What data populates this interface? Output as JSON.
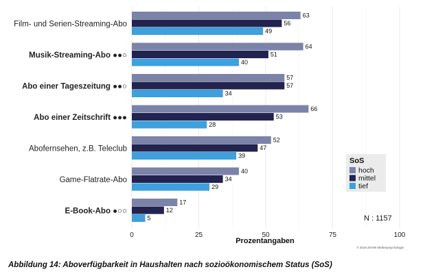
{
  "chart_data": {
    "type": "bar",
    "orientation": "horizontal",
    "categories": [
      {
        "label": "Film- und Serien-Streaming-Abo",
        "bold": false,
        "dots": ""
      },
      {
        "label": "Musik-Streaming-Abo",
        "bold": true,
        "dots": "●●○"
      },
      {
        "label": "Abo einer Tageszeitung",
        "bold": true,
        "dots": "●●○"
      },
      {
        "label": "Abo einer Zeitschrift",
        "bold": true,
        "dots": "●●●"
      },
      {
        "label": "Abofernsehen, z.B. Teleclub",
        "bold": false,
        "dots": ""
      },
      {
        "label": "Game-Flatrate-Abo",
        "bold": false,
        "dots": ""
      },
      {
        "label": "E-Book-Abo",
        "bold": true,
        "dots": "●○○"
      }
    ],
    "series": [
      {
        "name": "hoch",
        "color": "#7b83a8",
        "values": [
          63,
          64,
          57,
          66,
          52,
          40,
          17
        ]
      },
      {
        "name": "mittel",
        "color": "#23234f",
        "values": [
          56,
          51,
          57,
          53,
          47,
          34,
          12
        ]
      },
      {
        "name": "tief",
        "color": "#3ea0dc",
        "values": [
          49,
          40,
          34,
          28,
          39,
          29,
          5
        ]
      }
    ],
    "xlim": [
      0,
      100
    ],
    "xticks": [
      0,
      25,
      50,
      75,
      100
    ],
    "xlabel": "Prozentangaben",
    "legend": {
      "title": "SoS",
      "position": "right"
    },
    "gridlines": true
  },
  "annotations": {
    "n": "N : 1157",
    "copyright": "© 2019 ZHAW Medienpsychologie"
  },
  "caption": "Abbildung 14: Aboverfügbarkeit in Haushalten nach sozioökonomischem Status (SoS)"
}
